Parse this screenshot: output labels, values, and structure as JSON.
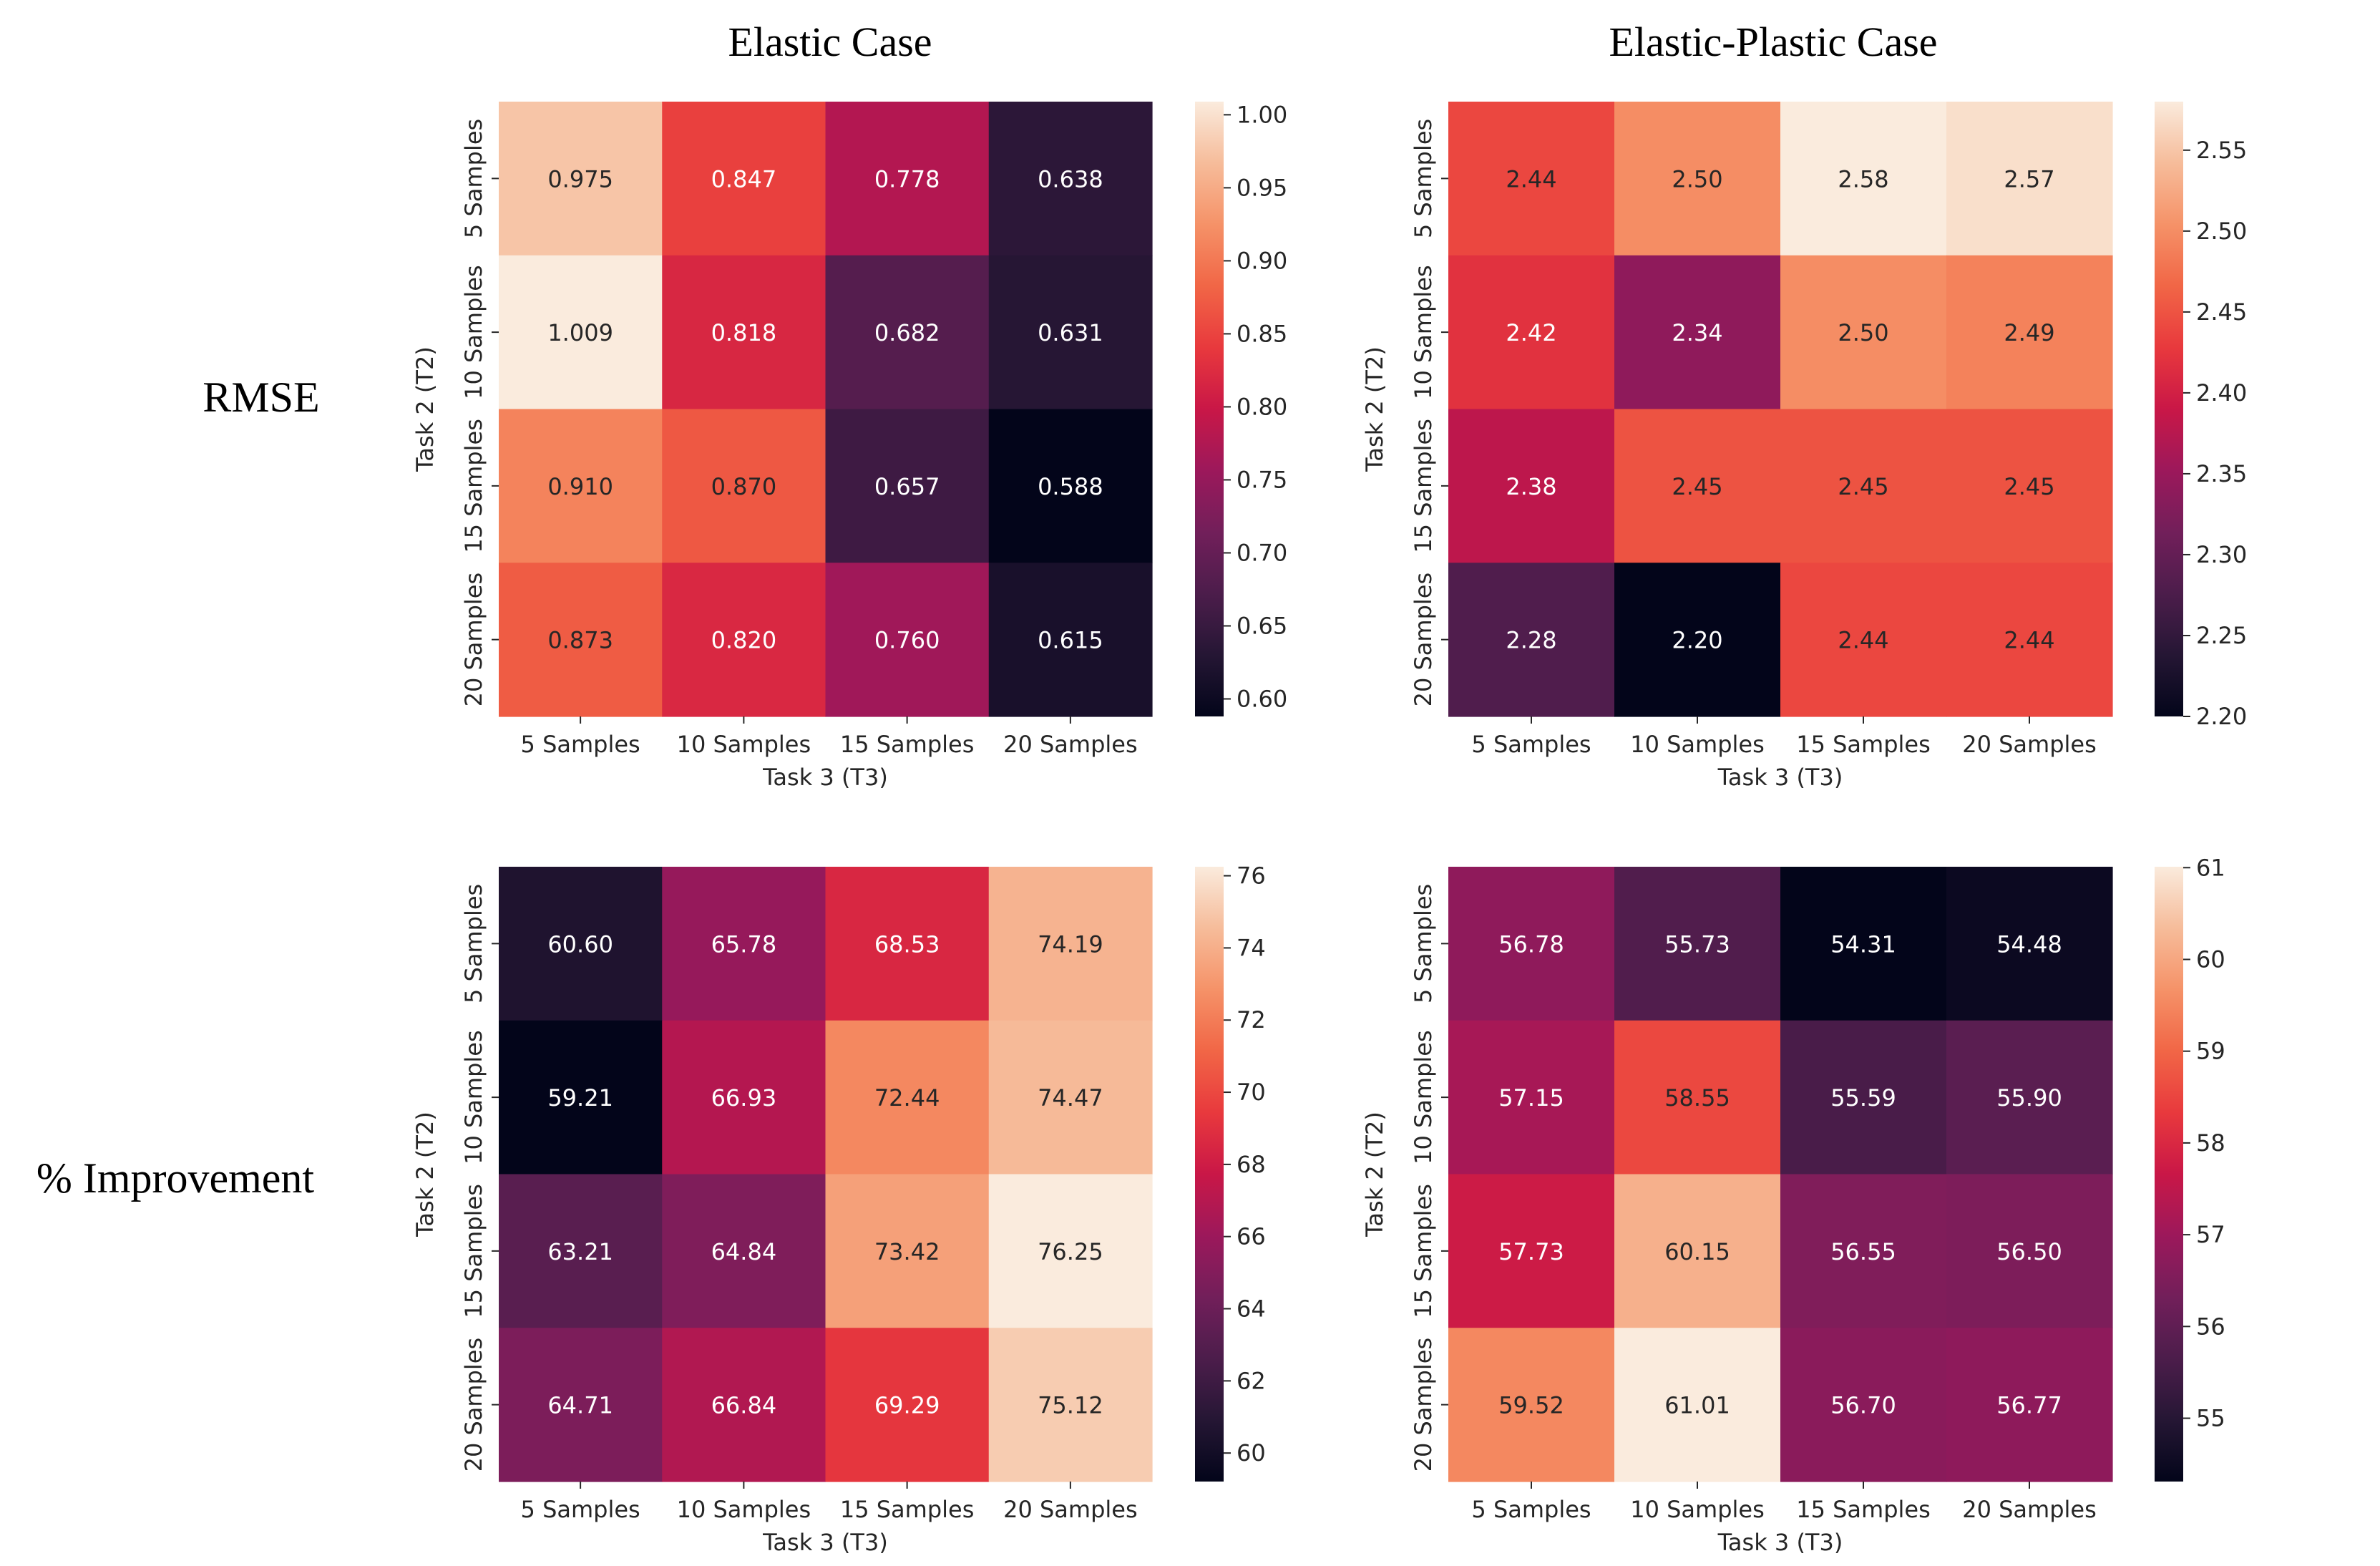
{
  "figure": {
    "col_titles": [
      "Elastic Case",
      "Elastic-Plastic Case"
    ],
    "row_titles": [
      "RMSE",
      "% Improvement"
    ]
  },
  "chart_data": [
    {
      "type": "heatmap",
      "id": "elastic-rmse",
      "xlabel": "Task 3 (T3)",
      "ylabel": "Task 2 (T2)",
      "x_categories": [
        "5 Samples",
        "10 Samples",
        "15 Samples",
        "20 Samples"
      ],
      "y_categories": [
        "5 Samples",
        "10 Samples",
        "15 Samples",
        "20 Samples"
      ],
      "values": [
        [
          0.975,
          0.847,
          0.778,
          0.638
        ],
        [
          1.009,
          0.818,
          0.682,
          0.631
        ],
        [
          0.91,
          0.87,
          0.657,
          0.588
        ],
        [
          0.873,
          0.82,
          0.76,
          0.615
        ]
      ],
      "labels": [
        [
          "0.975",
          "0.847",
          "0.778",
          "0.638"
        ],
        [
          "1.009",
          "0.818",
          "0.682",
          "0.631"
        ],
        [
          "0.910",
          "0.870",
          "0.657",
          "0.588"
        ],
        [
          "0.873",
          "0.820",
          "0.760",
          "0.615"
        ]
      ],
      "vmin": 0.588,
      "vmax": 1.009,
      "colorbar_ticks": [
        0.6,
        0.65,
        0.7,
        0.75,
        0.8,
        0.85,
        0.9,
        0.95,
        1.0
      ],
      "colorbar_labels": [
        "0.60",
        "0.65",
        "0.70",
        "0.75",
        "0.80",
        "0.85",
        "0.90",
        "0.95",
        "1.00"
      ],
      "colormap": "rocket"
    },
    {
      "type": "heatmap",
      "id": "plastic-rmse",
      "xlabel": "Task 3 (T3)",
      "ylabel": "Task 2 (T2)",
      "x_categories": [
        "5 Samples",
        "10 Samples",
        "15 Samples",
        "20 Samples"
      ],
      "y_categories": [
        "5 Samples",
        "10 Samples",
        "15 Samples",
        "20 Samples"
      ],
      "values": [
        [
          2.44,
          2.5,
          2.58,
          2.57
        ],
        [
          2.42,
          2.34,
          2.5,
          2.49
        ],
        [
          2.38,
          2.45,
          2.45,
          2.45
        ],
        [
          2.28,
          2.2,
          2.44,
          2.44
        ]
      ],
      "labels": [
        [
          "2.44",
          "2.50",
          "2.58",
          "2.57"
        ],
        [
          "2.42",
          "2.34",
          "2.50",
          "2.49"
        ],
        [
          "2.38",
          "2.45",
          "2.45",
          "2.45"
        ],
        [
          "2.28",
          "2.20",
          "2.44",
          "2.44"
        ]
      ],
      "vmin": 2.2,
      "vmax": 2.58,
      "colorbar_ticks": [
        2.2,
        2.25,
        2.3,
        2.35,
        2.4,
        2.45,
        2.5,
        2.55
      ],
      "colorbar_labels": [
        "2.20",
        "2.25",
        "2.30",
        "2.35",
        "2.40",
        "2.45",
        "2.50",
        "2.55"
      ],
      "colormap": "rocket"
    },
    {
      "type": "heatmap",
      "id": "elastic-improvement",
      "xlabel": "Task 3 (T3)",
      "ylabel": "Task 2 (T2)",
      "x_categories": [
        "5 Samples",
        "10 Samples",
        "15 Samples",
        "20 Samples"
      ],
      "y_categories": [
        "5 Samples",
        "10 Samples",
        "15 Samples",
        "20 Samples"
      ],
      "values": [
        [
          60.6,
          65.78,
          68.53,
          74.19
        ],
        [
          59.21,
          66.93,
          72.44,
          74.47
        ],
        [
          63.21,
          64.84,
          73.42,
          76.25
        ],
        [
          64.71,
          66.84,
          69.29,
          75.12
        ]
      ],
      "labels": [
        [
          "60.60",
          "65.78",
          "68.53",
          "74.19"
        ],
        [
          "59.21",
          "66.93",
          "72.44",
          "74.47"
        ],
        [
          "63.21",
          "64.84",
          "73.42",
          "76.25"
        ],
        [
          "64.71",
          "66.84",
          "69.29",
          "75.12"
        ]
      ],
      "vmin": 59.21,
      "vmax": 76.25,
      "colorbar_ticks": [
        60,
        62,
        64,
        66,
        68,
        70,
        72,
        74,
        76
      ],
      "colorbar_labels": [
        "60",
        "62",
        "64",
        "66",
        "68",
        "70",
        "72",
        "74",
        "76"
      ],
      "colormap": "rocket"
    },
    {
      "type": "heatmap",
      "id": "plastic-improvement",
      "xlabel": "Task 3 (T3)",
      "ylabel": "Task 2 (T2)",
      "x_categories": [
        "5 Samples",
        "10 Samples",
        "15 Samples",
        "20 Samples"
      ],
      "y_categories": [
        "5 Samples",
        "10 Samples",
        "15 Samples",
        "20 Samples"
      ],
      "values": [
        [
          56.78,
          55.73,
          54.31,
          54.48
        ],
        [
          57.15,
          58.55,
          55.59,
          55.9
        ],
        [
          57.73,
          60.15,
          56.55,
          56.5
        ],
        [
          59.52,
          61.01,
          56.7,
          56.77
        ]
      ],
      "labels": [
        [
          "56.78",
          "55.73",
          "54.31",
          "54.48"
        ],
        [
          "57.15",
          "58.55",
          "55.59",
          "55.90"
        ],
        [
          "57.73",
          "60.15",
          "56.55",
          "56.50"
        ],
        [
          "59.52",
          "61.01",
          "56.70",
          "56.77"
        ]
      ],
      "vmin": 54.31,
      "vmax": 61.01,
      "colorbar_ticks": [
        55,
        56,
        57,
        58,
        59,
        60,
        61
      ],
      "colorbar_labels": [
        "55",
        "56",
        "57",
        "58",
        "59",
        "60",
        "61"
      ],
      "colormap": "rocket"
    }
  ]
}
